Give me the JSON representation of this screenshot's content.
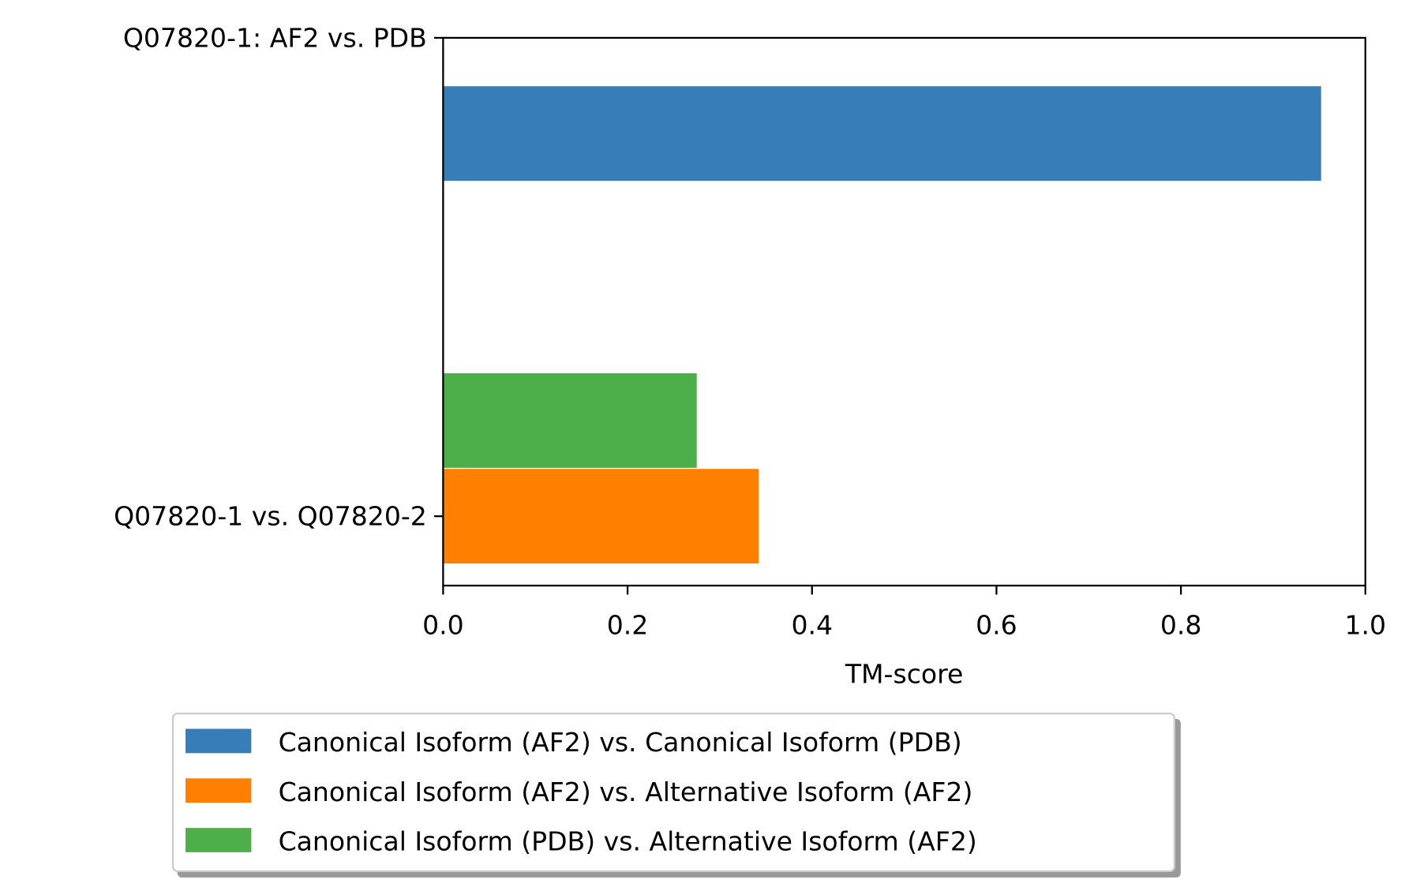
{
  "chart_data": {
    "type": "bar",
    "orientation": "horizontal",
    "title": "",
    "xlabel": "TM-score",
    "ylabel": "",
    "xlim": [
      0.0,
      1.0
    ],
    "xticks": [
      "0.0",
      "0.2",
      "0.4",
      "0.6",
      "0.8",
      "1.0"
    ],
    "categories": [
      "Q07820-1: AF2 vs. PDB",
      "Q07820-1 vs. Q07820-2"
    ],
    "series": [
      {
        "name": "Canonical Isoform (AF2) vs. Canonical Isoform (PDB)",
        "color": "#377eb8",
        "category": 0,
        "offset": 0.2,
        "value": 0.952
      },
      {
        "name": "Canonical Isoform (AF2) vs. Alternative Isoform (AF2)",
        "color": "#ff7f00",
        "category": 1,
        "offset": 0.0,
        "value": 0.342
      },
      {
        "name": "Canonical Isoform (PDB) vs. Alternative Isoform (AF2)",
        "color": "#4daf4a",
        "category": 1,
        "offset": -0.2,
        "value": 0.275
      }
    ],
    "grid": false,
    "legend_placement": "bottom-center, below axes"
  }
}
